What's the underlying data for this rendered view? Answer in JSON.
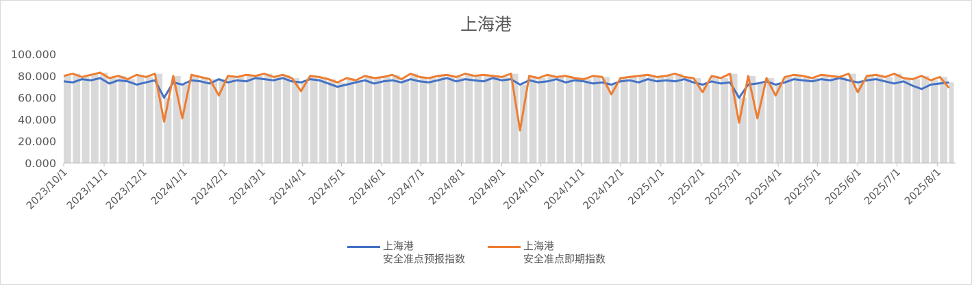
{
  "chart_data": {
    "type": "line",
    "title": "上海港",
    "xlabel": "",
    "ylabel": "",
    "ylim": [
      0,
      100
    ],
    "xlim": [
      "2023-10-01",
      "2025-08-15"
    ],
    "y_ticks": [
      "0.000",
      "20.000",
      "40.000",
      "60.000",
      "80.000",
      "100.000"
    ],
    "y_tick_values": [
      0,
      20,
      40,
      60,
      80,
      100
    ],
    "x_ticks": [
      "2023/10/1",
      "2023/11/1",
      "2023/12/1",
      "2024/1/1",
      "2024/2/1",
      "2024/3/1",
      "2024/4/1",
      "2024/5/1",
      "2024/6/1",
      "2024/7/1",
      "2024/8/1",
      "2024/9/1",
      "2024/10/1",
      "2024/11/1",
      "2024/12/1",
      "2025/1/1",
      "2025/2/1",
      "2025/3/1",
      "2025/4/1",
      "2025/5/1",
      "2025/6/1",
      "2025/7/1",
      "2025/8/1"
    ],
    "grid": false,
    "background_columns_color": "#d9d9d9",
    "legend_position": "bottom",
    "x": [
      "2023-10-01",
      "2023-10-08",
      "2023-10-15",
      "2023-10-22",
      "2023-10-29",
      "2023-11-05",
      "2023-11-12",
      "2023-11-19",
      "2023-11-26",
      "2023-12-03",
      "2023-12-10",
      "2023-12-17",
      "2023-12-24",
      "2023-12-31",
      "2024-01-07",
      "2024-01-14",
      "2024-01-21",
      "2024-01-28",
      "2024-02-04",
      "2024-02-11",
      "2024-02-18",
      "2024-02-25",
      "2024-03-03",
      "2024-03-10",
      "2024-03-17",
      "2024-03-24",
      "2024-03-31",
      "2024-04-07",
      "2024-04-14",
      "2024-04-21",
      "2024-04-28",
      "2024-05-05",
      "2024-05-12",
      "2024-05-19",
      "2024-05-26",
      "2024-06-02",
      "2024-06-09",
      "2024-06-16",
      "2024-06-23",
      "2024-06-30",
      "2024-07-07",
      "2024-07-14",
      "2024-07-21",
      "2024-07-28",
      "2024-08-04",
      "2024-08-11",
      "2024-08-18",
      "2024-08-25",
      "2024-09-01",
      "2024-09-08",
      "2024-09-15",
      "2024-09-22",
      "2024-09-29",
      "2024-10-06",
      "2024-10-13",
      "2024-10-20",
      "2024-10-27",
      "2024-11-03",
      "2024-11-10",
      "2024-11-17",
      "2024-11-24",
      "2024-12-01",
      "2024-12-08",
      "2024-12-15",
      "2024-12-22",
      "2024-12-29",
      "2025-01-05",
      "2025-01-12",
      "2025-01-19",
      "2025-01-26",
      "2025-02-02",
      "2025-02-09",
      "2025-02-16",
      "2025-02-23",
      "2025-03-02",
      "2025-03-09",
      "2025-03-16",
      "2025-03-23",
      "2025-03-30",
      "2025-04-06",
      "2025-04-13",
      "2025-04-20",
      "2025-04-27",
      "2025-05-04",
      "2025-05-11",
      "2025-05-18",
      "2025-05-25",
      "2025-06-01",
      "2025-06-08",
      "2025-06-15",
      "2025-06-22",
      "2025-06-29",
      "2025-07-06",
      "2025-07-13",
      "2025-07-20",
      "2025-07-27",
      "2025-08-03",
      "2025-08-10"
    ],
    "series": [
      {
        "name": "上海港\n安全准点预报指数",
        "color": "#4472c4",
        "values": [
          75,
          74,
          77,
          76,
          78,
          73,
          76,
          75,
          72,
          74,
          76,
          60,
          74,
          72,
          76,
          75,
          73,
          77,
          74,
          76,
          75,
          78,
          77,
          76,
          78,
          75,
          74,
          77,
          76,
          73,
          70,
          72,
          74,
          76,
          73,
          75,
          76,
          74,
          77,
          75,
          74,
          76,
          78,
          75,
          77,
          76,
          75,
          78,
          76,
          77,
          72,
          76,
          74,
          75,
          77,
          74,
          76,
          75,
          73,
          74,
          72,
          75,
          76,
          74,
          77,
          75,
          76,
          75,
          77,
          74,
          72,
          75,
          73,
          74,
          60,
          72,
          73,
          75,
          72,
          74,
          77,
          76,
          75,
          77,
          76,
          78,
          76,
          74,
          76,
          77,
          75,
          73,
          75,
          71,
          68,
          72,
          73,
          74
        ]
      },
      {
        "name": "上海港\n安全准点即期指数",
        "color": "#ed7d31",
        "values": [
          80,
          82,
          79,
          81,
          83,
          78,
          80,
          77,
          81,
          79,
          82,
          38,
          80,
          41,
          81,
          79,
          77,
          62,
          80,
          79,
          81,
          80,
          82,
          79,
          81,
          78,
          66,
          80,
          79,
          77,
          74,
          78,
          76,
          80,
          78,
          79,
          81,
          77,
          82,
          79,
          78,
          80,
          81,
          79,
          82,
          80,
          81,
          80,
          79,
          82,
          30,
          80,
          78,
          81,
          79,
          80,
          78,
          77,
          80,
          79,
          63,
          78,
          79,
          80,
          81,
          79,
          80,
          82,
          79,
          78,
          65,
          80,
          78,
          82,
          37,
          80,
          41,
          78,
          62,
          79,
          81,
          80,
          78,
          81,
          80,
          79,
          82,
          65,
          80,
          81,
          79,
          82,
          78,
          77,
          80,
          76,
          79,
          69
        ]
      }
    ]
  }
}
